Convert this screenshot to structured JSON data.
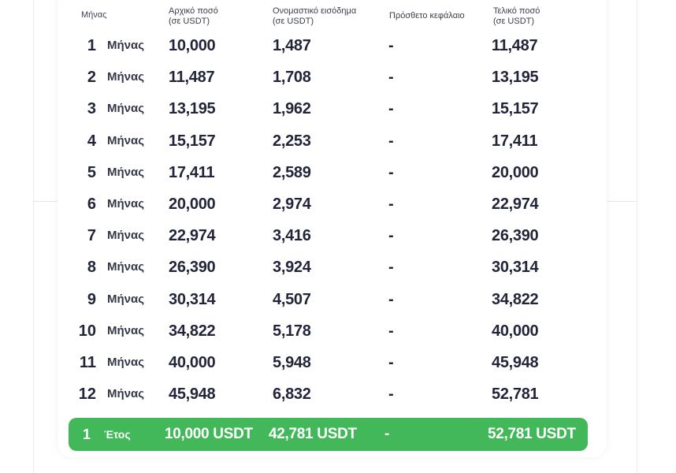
{
  "headers": {
    "period": "Μήνας",
    "initial_title": "Αρχικό ποσό",
    "initial_sub": "(σε USDT)",
    "income_title": "Ονομαστικό εισόδημα",
    "income_sub": "(σε USDT)",
    "extra": "Πρόσθετο κεφάλαιο",
    "final_title": "Τελικό ποσό",
    "final_sub": "(σε USDT)"
  },
  "rows": [
    {
      "n": "1",
      "unit": "Μήνας",
      "initial": "10,000",
      "income": "1,487",
      "extra": "-",
      "final": "11,487"
    },
    {
      "n": "2",
      "unit": "Μήνας",
      "initial": "11,487",
      "income": "1,708",
      "extra": "-",
      "final": "13,195"
    },
    {
      "n": "3",
      "unit": "Μήνας",
      "initial": "13,195",
      "income": "1,962",
      "extra": "-",
      "final": "15,157"
    },
    {
      "n": "4",
      "unit": "Μήνας",
      "initial": "15,157",
      "income": "2,253",
      "extra": "-",
      "final": "17,411"
    },
    {
      "n": "5",
      "unit": "Μήνας",
      "initial": "17,411",
      "income": "2,589",
      "extra": "-",
      "final": "20,000"
    },
    {
      "n": "6",
      "unit": "Μήνας",
      "initial": "20,000",
      "income": "2,974",
      "extra": "-",
      "final": "22,974"
    },
    {
      "n": "7",
      "unit": "Μήνας",
      "initial": "22,974",
      "income": "3,416",
      "extra": "-",
      "final": "26,390"
    },
    {
      "n": "8",
      "unit": "Μήνας",
      "initial": "26,390",
      "income": "3,924",
      "extra": "-",
      "final": "30,314"
    },
    {
      "n": "9",
      "unit": "Μήνας",
      "initial": "30,314",
      "income": "4,507",
      "extra": "-",
      "final": "34,822"
    },
    {
      "n": "10",
      "unit": "Μήνας",
      "initial": "34,822",
      "income": "5,178",
      "extra": "-",
      "final": "40,000"
    },
    {
      "n": "11",
      "unit": "Μήνας",
      "initial": "40,000",
      "income": "5,948",
      "extra": "-",
      "final": "45,948"
    },
    {
      "n": "12",
      "unit": "Μήνας",
      "initial": "45,948",
      "income": "6,832",
      "extra": "-",
      "final": "52,781"
    }
  ],
  "total": {
    "n": "1",
    "unit": "Έτος",
    "initial": "10,000 USDT",
    "income": "42,781 USDT",
    "extra": "-",
    "final": "52,781 USDT"
  },
  "colors": {
    "accent_green": "#43b85a",
    "text_dark": "#22253a"
  }
}
